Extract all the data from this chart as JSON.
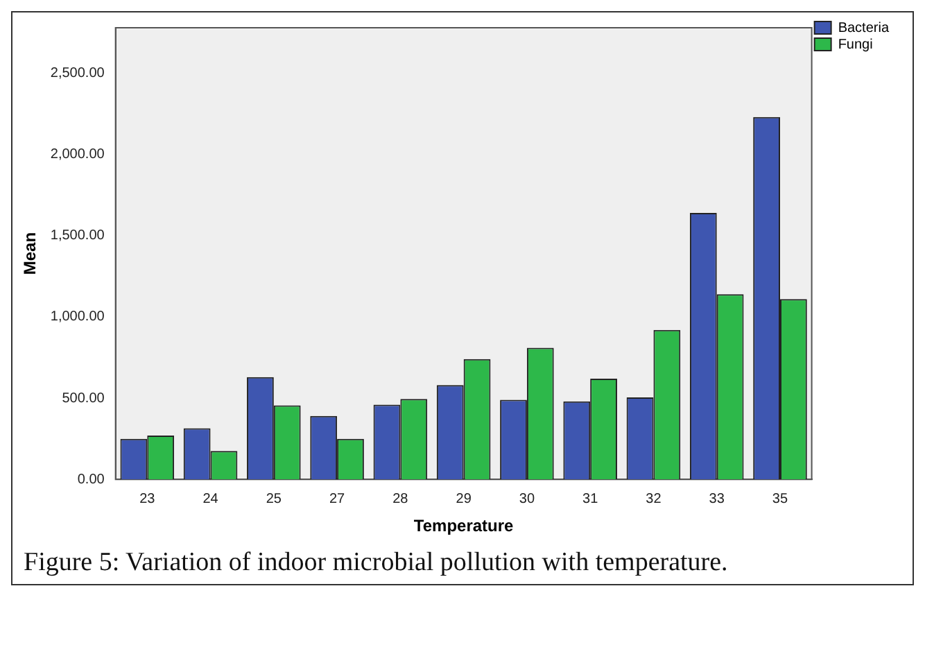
{
  "chart_data": {
    "type": "bar",
    "xlabel": "Temperature",
    "ylabel": "Mean",
    "categories": [
      "23",
      "24",
      "25",
      "27",
      "28",
      "29",
      "30",
      "31",
      "32",
      "33",
      "35"
    ],
    "series": [
      {
        "name": "Bacteria",
        "color": "#3e56b0",
        "values": [
          250,
          315,
          630,
          390,
          460,
          580,
          490,
          480,
          505,
          1640,
          2230
        ]
      },
      {
        "name": "Fungi",
        "color": "#2db84a",
        "values": [
          270,
          175,
          455,
          250,
          495,
          740,
          810,
          620,
          920,
          1140,
          1110
        ]
      }
    ],
    "ylim": [
      0,
      2780
    ],
    "yticks": [
      {
        "value": 0,
        "label": "0.00"
      },
      {
        "value": 500,
        "label": "500.00"
      },
      {
        "value": 1000,
        "label": "1,000.00"
      },
      {
        "value": 1500,
        "label": "1,500.00"
      },
      {
        "value": 2000,
        "label": "2,000.00"
      },
      {
        "value": 2500,
        "label": "2,500.00"
      }
    ],
    "grid": false,
    "legend": "top right",
    "annotations": [
      "Figure 5: Variation of indoor microbial pollution with temperature."
    ]
  }
}
